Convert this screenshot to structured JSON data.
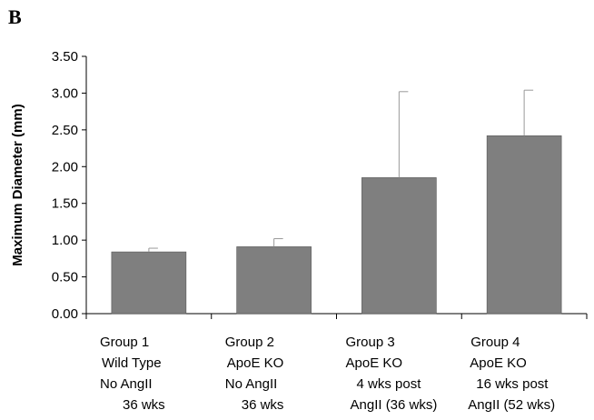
{
  "panel_label": "B",
  "chart_data": {
    "type": "bar",
    "title": "",
    "xlabel": "",
    "ylabel": "Maximum Diameter (mm)",
    "ylim": [
      0,
      3.5
    ],
    "yticks": [
      "0.00",
      "0.50",
      "1.00",
      "1.50",
      "2.00",
      "2.50",
      "3.00",
      "3.50"
    ],
    "grid": false,
    "legend": "none",
    "bar_color": "#7f7f7f",
    "categories": [
      [
        "Group 1",
        "Wild Type",
        "No AngII",
        "36 wks"
      ],
      [
        "Group 2",
        "ApoE KO",
        "No AngII",
        "36 wks"
      ],
      [
        "Group 3",
        "ApoE KO",
        "4 wks post",
        "AngII (36 wks)"
      ],
      [
        "Group 4",
        "ApoE KO",
        "16 wks post",
        "AngII (52 wks)"
      ]
    ],
    "values": [
      0.84,
      0.91,
      1.85,
      2.42
    ],
    "error_upper": [
      0.05,
      0.11,
      1.17,
      0.62
    ]
  }
}
